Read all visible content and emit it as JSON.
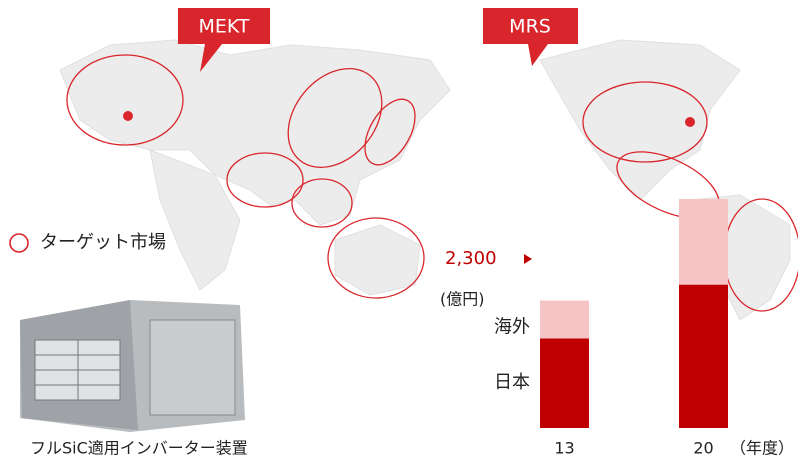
{
  "sites": [
    {
      "label": "MEKT"
    },
    {
      "label": "MRS"
    }
  ],
  "legend": "ターゲット市場",
  "product_caption": "フルSiC適用インバーター装置",
  "chart_data": {
    "type": "bar",
    "stacked": true,
    "categories": [
      "13",
      "20"
    ],
    "x_label": "（年度）",
    "y_label": "(億円)",
    "total_label": "2,300",
    "ylim": [
      0,
      2300
    ],
    "series": [
      {
        "name": "日本",
        "color": "#c00000",
        "values": [
          900,
          1440
        ]
      },
      {
        "name": "海外",
        "color": "#f7c4c6",
        "values": [
          380,
          860
        ]
      }
    ]
  }
}
